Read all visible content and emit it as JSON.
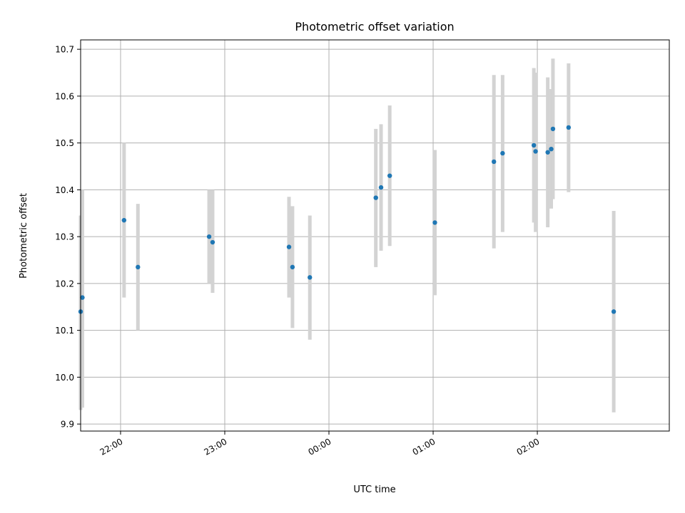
{
  "chart_data": {
    "type": "scatter",
    "title": "Photometric offset variation",
    "xlabel": "UTC time",
    "ylabel": "Photometric offset",
    "x_axis": {
      "kind": "time",
      "range": [
        "21:37",
        "03:16"
      ],
      "ticks": [
        "22:00",
        "23:00",
        "00:00",
        "01:00",
        "02:00"
      ]
    },
    "y_axis": {
      "range": [
        9.885,
        10.72
      ],
      "ticks": [
        "9.9",
        "10.0",
        "10.1",
        "10.2",
        "10.3",
        "10.4",
        "10.5",
        "10.6",
        "10.7"
      ]
    },
    "grid": true,
    "colors": {
      "point": "#1f77b4",
      "errorbar": "#d3d3d3"
    },
    "points": [
      {
        "time": "21:37",
        "y": 10.14,
        "err_low": 9.93,
        "err_high": 10.345
      },
      {
        "time": "21:38",
        "y": 10.17,
        "err_low": 9.935,
        "err_high": 10.4
      },
      {
        "time": "22:02",
        "y": 10.335,
        "err_low": 10.17,
        "err_high": 10.5
      },
      {
        "time": "22:10",
        "y": 10.235,
        "err_low": 10.1,
        "err_high": 10.37
      },
      {
        "time": "22:51",
        "y": 10.3,
        "err_low": 10.2,
        "err_high": 10.4
      },
      {
        "time": "22:53",
        "y": 10.288,
        "err_low": 10.18,
        "err_high": 10.4
      },
      {
        "time": "23:37",
        "y": 10.278,
        "err_low": 10.17,
        "err_high": 10.385
      },
      {
        "time": "23:39",
        "y": 10.235,
        "err_low": 10.105,
        "err_high": 10.365
      },
      {
        "time": "23:49",
        "y": 10.213,
        "err_low": 10.08,
        "err_high": 10.345
      },
      {
        "time": "00:27",
        "y": 10.383,
        "err_low": 10.235,
        "err_high": 10.53
      },
      {
        "time": "00:30",
        "y": 10.405,
        "err_low": 10.27,
        "err_high": 10.54
      },
      {
        "time": "00:35",
        "y": 10.43,
        "err_low": 10.28,
        "err_high": 10.58
      },
      {
        "time": "01:01",
        "y": 10.33,
        "err_low": 10.175,
        "err_high": 10.485
      },
      {
        "time": "01:35",
        "y": 10.46,
        "err_low": 10.275,
        "err_high": 10.645
      },
      {
        "time": "01:40",
        "y": 10.478,
        "err_low": 10.31,
        "err_high": 10.645
      },
      {
        "time": "01:58",
        "y": 10.495,
        "err_low": 10.33,
        "err_high": 10.66
      },
      {
        "time": "01:59",
        "y": 10.482,
        "err_low": 10.31,
        "err_high": 10.65
      },
      {
        "time": "02:06",
        "y": 10.48,
        "err_low": 10.32,
        "err_high": 10.64
      },
      {
        "time": "02:08",
        "y": 10.487,
        "err_low": 10.36,
        "err_high": 10.615
      },
      {
        "time": "02:09",
        "y": 10.53,
        "err_low": 10.38,
        "err_high": 10.68
      },
      {
        "time": "02:18",
        "y": 10.533,
        "err_low": 10.395,
        "err_high": 10.67
      },
      {
        "time": "02:44",
        "y": 10.14,
        "err_low": 9.925,
        "err_high": 10.355
      }
    ]
  }
}
